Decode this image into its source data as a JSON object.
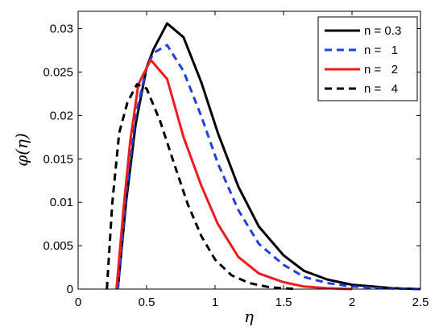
{
  "chart_data": {
    "type": "line",
    "title": "",
    "xlabel": "η",
    "ylabel": "φ(η)",
    "xlim": [
      0,
      2.5
    ],
    "ylim": [
      0,
      0.032
    ],
    "xticks": [
      0,
      0.5,
      1,
      1.5,
      2,
      2.5
    ],
    "xtick_labels": [
      "0",
      "0.5",
      "1",
      "1.5",
      "2",
      "2.5"
    ],
    "yticks": [
      0,
      0.005,
      0.01,
      0.015,
      0.02,
      0.025,
      0.03
    ],
    "ytick_labels": [
      "0",
      "0.005",
      "0.01",
      "0.015",
      "0.02",
      "0.025",
      "0.03"
    ],
    "grid": false,
    "legend_position": "top-right",
    "series": [
      {
        "name": "n = 0.3",
        "color": "#000000",
        "dash": "solid",
        "points": [
          [
            0.29,
            0
          ],
          [
            0.35,
            0.01
          ],
          [
            0.42,
            0.019
          ],
          [
            0.5,
            0.0255
          ],
          [
            0.55,
            0.0276
          ],
          [
            0.65,
            0.0306
          ],
          [
            0.77,
            0.029
          ],
          [
            0.9,
            0.0238
          ],
          [
            1.02,
            0.018
          ],
          [
            1.17,
            0.0118
          ],
          [
            1.32,
            0.0072
          ],
          [
            1.5,
            0.0039
          ],
          [
            1.65,
            0.0021
          ],
          [
            1.82,
            0.0011
          ],
          [
            2.0,
            0.0005
          ],
          [
            2.15,
            0.0003
          ],
          [
            2.3,
            0.0001
          ],
          [
            2.5,
            0
          ]
        ]
      },
      {
        "name": "n =   1",
        "color": "#1f3fe0",
        "dash": "dashed",
        "points": [
          [
            0.29,
            0
          ],
          [
            0.35,
            0.011
          ],
          [
            0.42,
            0.02
          ],
          [
            0.5,
            0.0255
          ],
          [
            0.55,
            0.0272
          ],
          [
            0.65,
            0.0281
          ],
          [
            0.77,
            0.0251
          ],
          [
            0.9,
            0.0199
          ],
          [
            1.02,
            0.0145
          ],
          [
            1.17,
            0.0091
          ],
          [
            1.32,
            0.0052
          ],
          [
            1.5,
            0.0028
          ],
          [
            1.65,
            0.0014
          ],
          [
            1.82,
            0.0007
          ],
          [
            2.0,
            0.0003
          ],
          [
            2.2,
            0.0001
          ],
          [
            2.5,
            0
          ]
        ]
      },
      {
        "name": "n =   2",
        "color": "#ee1c1c",
        "dash": "solid",
        "points": [
          [
            0.28,
            0
          ],
          [
            0.33,
            0.009
          ],
          [
            0.38,
            0.017
          ],
          [
            0.44,
            0.0236
          ],
          [
            0.53,
            0.0264
          ],
          [
            0.65,
            0.0242
          ],
          [
            0.77,
            0.0175
          ],
          [
            0.9,
            0.0119
          ],
          [
            1.02,
            0.0075
          ],
          [
            1.17,
            0.0037
          ],
          [
            1.32,
            0.0018
          ],
          [
            1.5,
            0.0008
          ],
          [
            1.65,
            0.0003
          ],
          [
            1.82,
            0.0001
          ],
          [
            2.0,
            0
          ]
        ]
      },
      {
        "name": "n =   4",
        "color": "#000000",
        "dash": "dashed",
        "points": [
          [
            0.21,
            0
          ],
          [
            0.25,
            0.01
          ],
          [
            0.3,
            0.018
          ],
          [
            0.36,
            0.0215
          ],
          [
            0.43,
            0.0236
          ],
          [
            0.5,
            0.0231
          ],
          [
            0.6,
            0.0193
          ],
          [
            0.7,
            0.0145
          ],
          [
            0.8,
            0.0098
          ],
          [
            0.9,
            0.0061
          ],
          [
            1.0,
            0.0034
          ],
          [
            1.12,
            0.0016
          ],
          [
            1.25,
            0.0007
          ],
          [
            1.4,
            0.0002
          ],
          [
            1.6,
            0
          ]
        ]
      }
    ]
  }
}
